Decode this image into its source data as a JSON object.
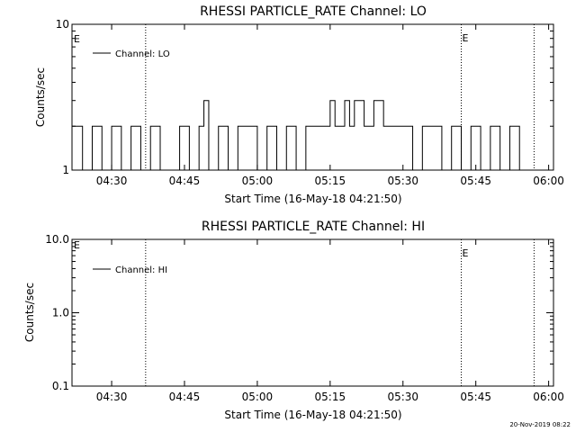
{
  "page": {
    "footer_text": "20-Nov-2019 08:22"
  },
  "chart_data": [
    {
      "type": "line",
      "title": "RHESSI PARTICLE_RATE Channel: LO",
      "xlabel": "Start Time (16-May-18 04:21:50)",
      "ylabel": "Counts/sec",
      "x_unit": "time (HH:MM)",
      "xlim": [
        "04:21:50",
        "06:01"
      ],
      "x_ticks": [
        "04:30",
        "04:45",
        "05:00",
        "05:15",
        "05:30",
        "05:45",
        "06:00"
      ],
      "y_scale": "log",
      "ylim": [
        1,
        10
      ],
      "y_ticks": [
        "1",
        "10"
      ],
      "legend": {
        "label": "Channel: LO",
        "placement": "top-left"
      },
      "event_markers": [
        {
          "time": "04:37",
          "label": ""
        },
        {
          "time": "05:42",
          "label": "E"
        },
        {
          "time": "05:57",
          "label": ""
        }
      ],
      "edge_marker_label": "E",
      "series": [
        {
          "name": "Channel: LO",
          "x": [
            "04:21:50",
            "04:24",
            "04:26",
            "04:28",
            "04:30",
            "04:32",
            "04:34",
            "04:36",
            "04:38",
            "04:40",
            "04:42",
            "04:44",
            "04:46",
            "04:48",
            "04:49",
            "04:50",
            "04:52",
            "04:54",
            "04:56",
            "04:58",
            "05:00",
            "05:02",
            "05:04",
            "05:06",
            "05:08",
            "05:10",
            "05:12",
            "05:14",
            "05:15",
            "05:16",
            "05:18",
            "05:19",
            "05:20",
            "05:22",
            "05:24",
            "05:26",
            "05:28",
            "05:30",
            "05:32",
            "05:34",
            "05:36",
            "05:38",
            "05:40",
            "05:42",
            "05:44",
            "05:46",
            "05:48",
            "05:50",
            "05:52",
            "05:54"
          ],
          "y": [
            2,
            1,
            2,
            1,
            2,
            1,
            2,
            1,
            2,
            1,
            1,
            2,
            1,
            2,
            3,
            1,
            2,
            1,
            2,
            2,
            1,
            2,
            1,
            2,
            1,
            2,
            2,
            2,
            3,
            2,
            3,
            2,
            3,
            2,
            3,
            2,
            2,
            2,
            1,
            2,
            2,
            1,
            2,
            1,
            2,
            1,
            2,
            1,
            2,
            1
          ]
        }
      ]
    },
    {
      "type": "line",
      "title": "RHESSI PARTICLE_RATE Channel: HI",
      "xlabel": "Start Time (16-May-18 04:21:50)",
      "ylabel": "Counts/sec",
      "x_unit": "time (HH:MM)",
      "xlim": [
        "04:21:50",
        "06:01"
      ],
      "x_ticks": [
        "04:30",
        "04:45",
        "05:00",
        "05:15",
        "05:30",
        "05:45",
        "06:00"
      ],
      "y_scale": "log",
      "ylim": [
        0.1,
        10
      ],
      "y_ticks": [
        "0.1",
        "1.0",
        "10.0"
      ],
      "legend": {
        "label": "Channel: HI",
        "placement": "top-left"
      },
      "event_markers": [
        {
          "time": "04:37",
          "label": ""
        },
        {
          "time": "05:42",
          "label": "E"
        },
        {
          "time": "05:57",
          "label": ""
        }
      ],
      "edge_marker_label": "E",
      "series": [
        {
          "name": "Channel: HI",
          "x": [],
          "y": []
        }
      ]
    }
  ]
}
